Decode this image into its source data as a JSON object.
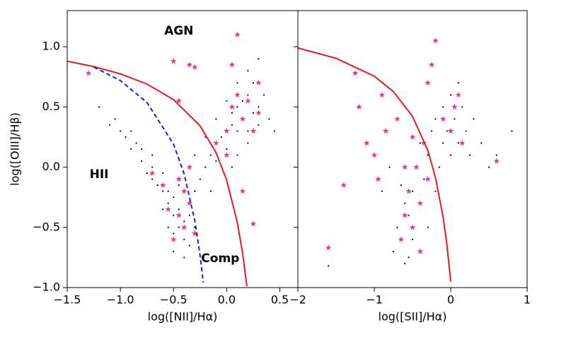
{
  "chart_data": [
    {
      "type": "scatter",
      "xlabel": "log([NII]/Hα)",
      "ylabel": "log([OIII]/Hβ)",
      "xlim": [
        -1.5,
        0.67
      ],
      "ylim": [
        -1.0,
        1.3
      ],
      "xticks": [
        {
          "value": -1.5,
          "label": "−1.5"
        },
        {
          "value": -1.0,
          "label": "−1.0"
        },
        {
          "value": -0.5,
          "label": "−0.5"
        },
        {
          "value": 0.0,
          "label": "0.0"
        },
        0.5
      ],
      "yticks": [
        {
          "value": -1.0,
          "label": "−1.0"
        },
        {
          "value": -0.5,
          "label": "−0.5"
        },
        {
          "value": 0.0,
          "label": "0.0"
        },
        0.5,
        {
          "value": 1.0,
          "label": "1.0"
        }
      ],
      "annotations": [
        {
          "text": "AGN",
          "x": -0.45,
          "y": 1.13
        },
        {
          "text": "HII",
          "x": -1.2,
          "y": -0.06
        },
        {
          "text": "Comp",
          "x": -0.06,
          "y": -0.76
        }
      ],
      "series": [
        {
          "kind": "dot",
          "color": "#000000",
          "x": [
            -1.2,
            -1.1,
            -1.05,
            -1.0,
            -0.95,
            -0.9,
            -0.85,
            -0.8,
            -0.8,
            -0.75,
            -0.7,
            -0.7,
            -0.65,
            -0.6,
            -0.6,
            -0.55,
            -0.55,
            -0.5,
            -0.5,
            -0.5,
            -0.45,
            -0.45,
            -0.4,
            -0.4,
            -0.35,
            -0.35,
            -0.3,
            -0.3,
            -0.25,
            -0.2,
            -0.15,
            -0.1,
            -0.1,
            -0.05,
            0.0,
            0.0,
            0.05,
            0.05,
            0.1,
            0.1,
            0.15,
            0.15,
            0.2,
            0.2,
            0.25,
            0.25,
            0.3,
            0.3,
            0.35,
            0.4,
            -0.2,
            -0.1,
            0.0,
            0.1,
            0.2,
            0.3,
            -0.3,
            -0.15,
            0.05,
            0.45,
            -0.6,
            -0.7,
            -0.9,
            -0.5,
            -0.4,
            -0.45,
            -0.55,
            -0.35,
            0.1,
            0.2
          ],
          "values": [
            0.5,
            0.35,
            0.4,
            0.3,
            0.25,
            0.15,
            0.2,
            0.05,
            0.15,
            -0.05,
            0.0,
            -0.1,
            -0.15,
            -0.2,
            -0.05,
            -0.3,
            -0.2,
            -0.4,
            -0.25,
            -0.55,
            -0.5,
            -0.35,
            -0.6,
            -0.45,
            -0.4,
            -0.3,
            -0.2,
            -0.5,
            -0.1,
            0.0,
            0.1,
            0.2,
            0.05,
            0.25,
            0.3,
            0.15,
            0.35,
            0.45,
            0.5,
            0.3,
            0.55,
            0.4,
            0.6,
            0.3,
            0.45,
            0.7,
            0.5,
            0.35,
            0.6,
            0.4,
            0.25,
            0.4,
            0.55,
            0.7,
            0.8,
            0.9,
            0.1,
            -0.2,
            0.0,
            0.3,
            -0.35,
            0.1,
            0.3,
            -0.7,
            -0.75,
            -0.15,
            -0.5,
            -0.65,
            0.1,
            0.2
          ]
        },
        {
          "kind": "star",
          "color": "#e6308a",
          "x": [
            -1.3,
            -0.5,
            -0.45,
            -0.4,
            -0.4,
            -0.35,
            -0.3,
            -0.55,
            -0.45,
            -0.35,
            -0.1,
            0.0,
            0.05,
            0.1,
            0.15,
            0.2,
            0.25,
            0.3,
            0.1,
            0.05,
            -0.5,
            -0.35,
            -0.3,
            -0.45,
            0.15,
            0.25,
            -0.7,
            -0.6,
            0.0,
            0.3
          ],
          "values": [
            0.78,
            -0.6,
            -0.4,
            -0.5,
            -0.2,
            -0.3,
            -0.55,
            -0.35,
            -0.1,
            0.0,
            0.2,
            0.3,
            0.5,
            0.6,
            0.4,
            0.55,
            0.3,
            0.7,
            1.1,
            0.85,
            0.88,
            0.85,
            0.83,
            0.55,
            -0.2,
            -0.47,
            -0.05,
            -0.15,
            0.1,
            0.45
          ]
        },
        {
          "kind": "line",
          "color": "#e8191b",
          "dash": false,
          "x": [
            -1.5,
            -1.25,
            -1.0,
            -0.75,
            -0.5,
            -0.25,
            -0.1,
            0.0,
            0.1,
            0.15,
            0.19
          ],
          "values": [
            0.88,
            0.835,
            0.775,
            0.69,
            0.561,
            0.343,
            0.12,
            -0.108,
            -0.459,
            -0.716,
            -0.989
          ]
        },
        {
          "kind": "line",
          "color": "#1a1adb",
          "dash": true,
          "x": [
            -1.25,
            -1.0,
            -0.75,
            -0.5,
            -0.4,
            -0.3,
            -0.25,
            -0.22
          ],
          "values": [
            0.831,
            0.719,
            0.537,
            0.191,
            -0.056,
            -0.443,
            -0.733,
            -0.959
          ]
        }
      ]
    },
    {
      "type": "scatter",
      "xlabel": "log([SII]/Hα)",
      "xlim": [
        -2,
        1
      ],
      "ylim": [
        -1.0,
        1.3
      ],
      "xticks": [
        {
          "value": -2,
          "label": "−2"
        },
        {
          "value": -1,
          "label": "−1"
        },
        0,
        1
      ],
      "yticks": [
        -1.0,
        -0.5,
        0.0,
        0.5,
        1.0
      ],
      "series": [
        {
          "kind": "dot",
          "color": "#000000",
          "x": [
            -0.75,
            -0.7,
            -0.65,
            -0.6,
            -0.6,
            -0.55,
            -0.5,
            -0.5,
            -0.45,
            -0.4,
            -0.4,
            -0.35,
            -0.3,
            -0.3,
            -0.25,
            -0.2,
            -0.2,
            -0.15,
            -0.1,
            -0.1,
            -0.05,
            0.0,
            0.0,
            0.05,
            0.1,
            0.1,
            0.15,
            0.2,
            0.25,
            0.3,
            0.4,
            0.5,
            0.6,
            0.8,
            -0.9,
            -1.6,
            -0.8,
            -0.65,
            -0.55,
            -0.45
          ],
          "values": [
            -0.7,
            -0.5,
            -0.6,
            -0.3,
            -0.8,
            -0.4,
            -0.2,
            -0.6,
            0.0,
            -0.3,
            0.2,
            -0.1,
            -0.5,
            0.1,
            0.3,
            -0.2,
            0.4,
            0.0,
            0.5,
            0.2,
            0.3,
            0.6,
            0.1,
            0.4,
            0.7,
            0.2,
            0.5,
            0.3,
            0.1,
            0.4,
            0.2,
            0.0,
            0.1,
            0.3,
            -0.2,
            -0.82,
            0.0,
            -0.15,
            -0.75,
            0.35
          ]
        },
        {
          "kind": "star",
          "color": "#e6308a",
          "x": [
            -1.6,
            -1.4,
            -1.25,
            -1.2,
            -1.1,
            -1.0,
            -0.95,
            -0.9,
            -0.85,
            -0.7,
            -0.65,
            -0.6,
            -0.55,
            -0.5,
            -0.45,
            -0.4,
            -0.35,
            -0.3,
            -0.25,
            -0.2,
            -0.1,
            0.0,
            0.05,
            0.1,
            0.6,
            -0.6,
            -0.5,
            -0.4,
            -0.3,
            0.15
          ],
          "values": [
            -0.67,
            -0.15,
            0.78,
            0.5,
            0.2,
            0.1,
            -0.1,
            0.6,
            0.3,
            0.4,
            -0.6,
            -0.4,
            -0.2,
            -0.5,
            0.0,
            -0.3,
            0.2,
            0.7,
            0.85,
            1.05,
            0.4,
            0.3,
            0.5,
            0.6,
            0.05,
            0.0,
            0.25,
            -0.7,
            -0.1,
            0.2
          ]
        },
        {
          "kind": "line",
          "color": "#e8191b",
          "dash": false,
          "x": [
            -2,
            -1.5,
            -1.0,
            -0.75,
            -0.5,
            -0.3,
            -0.2,
            -0.1,
            -0.05,
            0.0
          ],
          "values": [
            0.99,
            0.904,
            0.755,
            0.627,
            0.422,
            0.139,
            -0.085,
            -0.414,
            -0.646,
            -0.95
          ]
        }
      ]
    }
  ]
}
